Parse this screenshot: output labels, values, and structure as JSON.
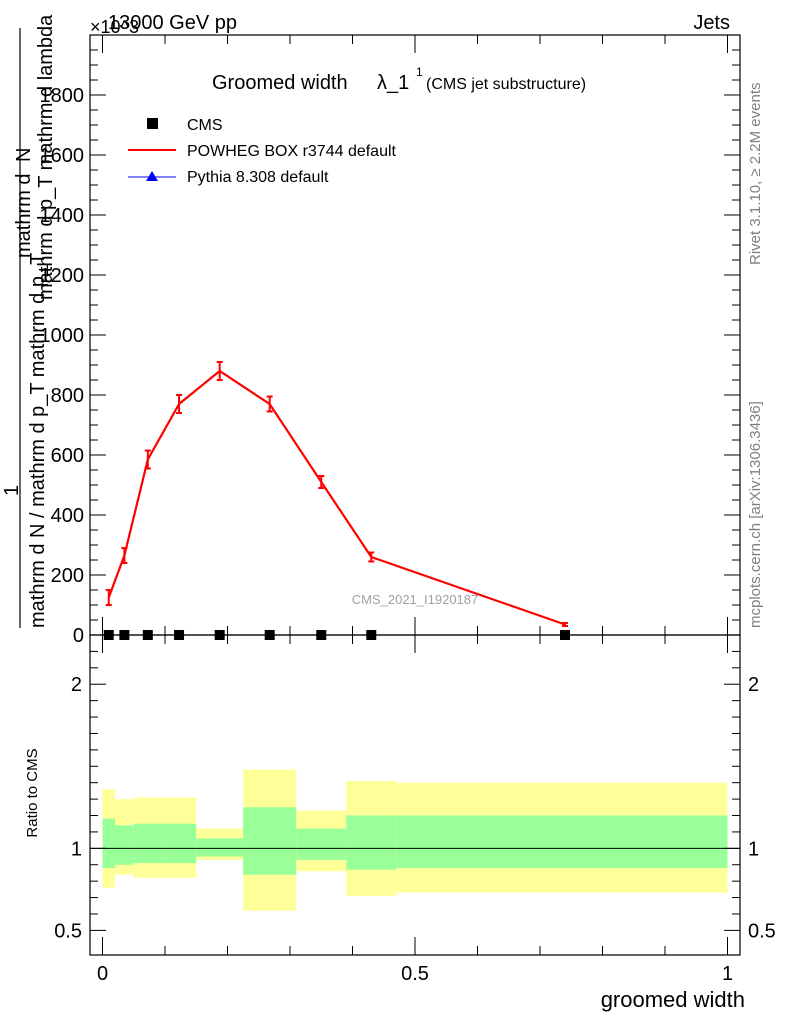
{
  "header": {
    "energy_label": "13000 GeV pp",
    "process_label": "Jets",
    "exponent_label": "×10^3"
  },
  "side_labels": {
    "rivet": "Rivet 3.1.10, ≥ 2.2M events",
    "mcplots": "mcplots.cern.ch [arXiv:1306.3436]"
  },
  "chart_data": [
    {
      "type": "line",
      "title_main": "Groomed width",
      "title_lambda": "λ_1",
      "title_sup": "1",
      "title_sub": "(CMS jet substructure)",
      "ylabel_numerator": "mathrm d",
      "ylabel_numerator_n": "N",
      "ylabel_numerator_denom": "mathrm d p_T mathrm d lambda",
      "ylabel_fraction_num": "1",
      "ylabel_fraction_den": "mathrm d N / mathrm d p_T mathrm d p_T",
      "watermark": "CMS_2021_I1920187",
      "yscale_exponent": 3,
      "ylim": [
        0,
        2000
      ],
      "xlim": [
        -0.02,
        1.02
      ],
      "yticks": [
        0,
        200,
        400,
        600,
        800,
        1000,
        1200,
        1400,
        1600,
        1800
      ],
      "ytick_labels": [
        "0",
        "200",
        "400",
        "600",
        "800",
        "1000",
        "1200",
        "1400",
        "1600",
        "1800"
      ],
      "legend_position": "top-left",
      "series": [
        {
          "name": "CMS",
          "marker": "square",
          "color": "#000000",
          "x": [
            0.01,
            0.035,
            0.0725,
            0.1225,
            0.1875,
            0.2675,
            0.35,
            0.43,
            0.74
          ],
          "y": [
            0,
            0,
            0,
            0,
            0,
            0,
            0,
            0,
            0
          ]
        },
        {
          "name": "POWHEG BOX r3744 default",
          "marker": "line",
          "color": "#ff0000",
          "x": [
            0.01,
            0.035,
            0.0725,
            0.1225,
            0.1875,
            0.2675,
            0.35,
            0.43,
            0.74
          ],
          "y": [
            125,
            265,
            585,
            770,
            880,
            770,
            510,
            260,
            35
          ],
          "yerr": [
            25,
            25,
            30,
            30,
            30,
            25,
            20,
            15,
            5
          ]
        },
        {
          "name": "Pythia 8.308 default",
          "marker": "triangle",
          "color": "#0000ff",
          "x": [],
          "y": []
        }
      ]
    },
    {
      "type": "area",
      "ylabel": "Ratio to CMS",
      "xlabel": "groomed width",
      "ylim": [
        0.35,
        2.3
      ],
      "xlim": [
        -0.02,
        1.02
      ],
      "yticks": [
        0.5,
        1,
        2
      ],
      "ytick_labels": [
        "0.5",
        "1",
        "2"
      ],
      "xticks": [
        0,
        0.5,
        1
      ],
      "xtick_labels": [
        "0",
        "0.5",
        "1"
      ],
      "bins": [
        {
          "x0": 0.0,
          "x1": 0.02,
          "green": [
            0.88,
            1.18
          ],
          "yellow": [
            0.76,
            1.36
          ]
        },
        {
          "x0": 0.02,
          "x1": 0.05,
          "green": [
            0.9,
            1.14
          ],
          "yellow": [
            0.84,
            1.3
          ]
        },
        {
          "x0": 0.05,
          "x1": 0.095,
          "green": [
            0.91,
            1.15
          ],
          "yellow": [
            0.82,
            1.31
          ]
        },
        {
          "x0": 0.095,
          "x1": 0.15,
          "green": [
            0.91,
            1.15
          ],
          "yellow": [
            0.82,
            1.31
          ]
        },
        {
          "x0": 0.15,
          "x1": 0.225,
          "green": [
            0.95,
            1.06
          ],
          "yellow": [
            0.93,
            1.12
          ]
        },
        {
          "x0": 0.225,
          "x1": 0.31,
          "green": [
            0.84,
            1.25
          ],
          "yellow": [
            0.62,
            1.48
          ]
        },
        {
          "x0": 0.31,
          "x1": 0.39,
          "green": [
            0.93,
            1.12
          ],
          "yellow": [
            0.86,
            1.23
          ]
        },
        {
          "x0": 0.39,
          "x1": 0.47,
          "green": [
            0.87,
            1.2
          ],
          "yellow": [
            0.71,
            1.41
          ]
        },
        {
          "x0": 0.47,
          "x1": 1.0,
          "green": [
            0.88,
            1.2
          ],
          "yellow": [
            0.73,
            1.4
          ]
        }
      ],
      "reference_line": 1,
      "colors": {
        "green": "#99ff99",
        "yellow": "#ffff99"
      }
    }
  ]
}
